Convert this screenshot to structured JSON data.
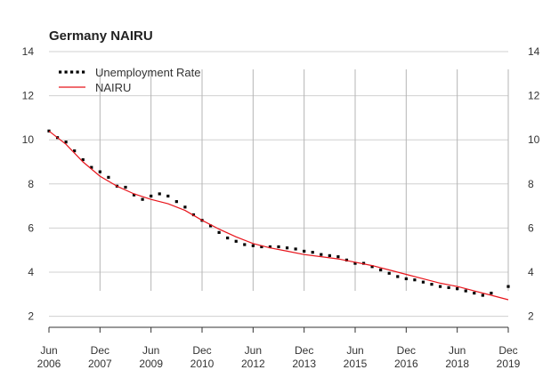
{
  "chart_data": {
    "type": "line",
    "title": "Germany NAIRU",
    "xlabel": "",
    "ylabel": "",
    "ylim": [
      1.5,
      14
    ],
    "y_ticks": [
      2,
      4,
      6,
      8,
      10,
      12,
      14
    ],
    "x_range": [
      "2006-06",
      "2019-12"
    ],
    "x_ticks": [
      {
        "date": "2006-06",
        "month": "Jun",
        "year": "2006"
      },
      {
        "date": "2007-12",
        "month": "Dec",
        "year": "2007"
      },
      {
        "date": "2009-06",
        "month": "Jun",
        "year": "2009"
      },
      {
        "date": "2010-12",
        "month": "Dec",
        "year": "2010"
      },
      {
        "date": "2012-06",
        "month": "Jun",
        "year": "2012"
      },
      {
        "date": "2013-12",
        "month": "Dec",
        "year": "2013"
      },
      {
        "date": "2015-06",
        "month": "Jun",
        "year": "2015"
      },
      {
        "date": "2016-12",
        "month": "Dec",
        "year": "2016"
      },
      {
        "date": "2018-06",
        "month": "Jun",
        "year": "2018"
      },
      {
        "date": "2019-12",
        "month": "Dec",
        "year": "2019"
      }
    ],
    "grid": true,
    "legend_position": "top-left",
    "series": [
      {
        "name": "Unemployment Rate",
        "style": "dotted",
        "color": "#000000",
        "points": [
          [
            "2006-06",
            10.4
          ],
          [
            "2006-09",
            10.1
          ],
          [
            "2006-12",
            9.9
          ],
          [
            "2007-03",
            9.5
          ],
          [
            "2007-06",
            9.1
          ],
          [
            "2007-09",
            8.75
          ],
          [
            "2007-12",
            8.55
          ],
          [
            "2008-03",
            8.3
          ],
          [
            "2008-06",
            7.9
          ],
          [
            "2008-09",
            7.85
          ],
          [
            "2008-12",
            7.5
          ],
          [
            "2009-03",
            7.3
          ],
          [
            "2009-06",
            7.45
          ],
          [
            "2009-09",
            7.55
          ],
          [
            "2009-12",
            7.45
          ],
          [
            "2010-03",
            7.2
          ],
          [
            "2010-06",
            6.95
          ],
          [
            "2010-09",
            6.6
          ],
          [
            "2010-12",
            6.35
          ],
          [
            "2011-03",
            6.1
          ],
          [
            "2011-06",
            5.8
          ],
          [
            "2011-09",
            5.55
          ],
          [
            "2011-12",
            5.4
          ],
          [
            "2012-03",
            5.25
          ],
          [
            "2012-06",
            5.2
          ],
          [
            "2012-09",
            5.15
          ],
          [
            "2012-12",
            5.15
          ],
          [
            "2013-03",
            5.15
          ],
          [
            "2013-06",
            5.1
          ],
          [
            "2013-09",
            5.05
          ],
          [
            "2013-12",
            4.95
          ],
          [
            "2014-03",
            4.9
          ],
          [
            "2014-06",
            4.8
          ],
          [
            "2014-09",
            4.75
          ],
          [
            "2014-12",
            4.7
          ],
          [
            "2015-03",
            4.55
          ],
          [
            "2015-06",
            4.4
          ],
          [
            "2015-09",
            4.4
          ],
          [
            "2015-12",
            4.25
          ],
          [
            "2016-03",
            4.1
          ],
          [
            "2016-06",
            3.95
          ],
          [
            "2016-09",
            3.8
          ],
          [
            "2016-12",
            3.7
          ],
          [
            "2017-03",
            3.65
          ],
          [
            "2017-06",
            3.55
          ],
          [
            "2017-09",
            3.45
          ],
          [
            "2017-12",
            3.35
          ],
          [
            "2018-03",
            3.3
          ],
          [
            "2018-06",
            3.25
          ],
          [
            "2018-09",
            3.15
          ],
          [
            "2018-12",
            3.05
          ],
          [
            "2019-03",
            2.95
          ],
          [
            "2019-06",
            3.05
          ],
          [
            "2019-12",
            3.35
          ]
        ]
      },
      {
        "name": "NAIRU",
        "style": "solid",
        "color": "#e8141b",
        "points": [
          [
            "2006-06",
            10.4
          ],
          [
            "2006-12",
            9.8
          ],
          [
            "2007-06",
            9.0
          ],
          [
            "2007-12",
            8.35
          ],
          [
            "2008-06",
            7.9
          ],
          [
            "2008-12",
            7.55
          ],
          [
            "2009-06",
            7.3
          ],
          [
            "2009-12",
            7.1
          ],
          [
            "2010-06",
            6.8
          ],
          [
            "2010-12",
            6.35
          ],
          [
            "2011-06",
            5.95
          ],
          [
            "2011-12",
            5.6
          ],
          [
            "2012-06",
            5.3
          ],
          [
            "2012-12",
            5.1
          ],
          [
            "2013-06",
            4.95
          ],
          [
            "2013-12",
            4.8
          ],
          [
            "2014-06",
            4.7
          ],
          [
            "2014-12",
            4.6
          ],
          [
            "2015-06",
            4.45
          ],
          [
            "2015-12",
            4.3
          ],
          [
            "2016-06",
            4.1
          ],
          [
            "2016-12",
            3.9
          ],
          [
            "2017-06",
            3.7
          ],
          [
            "2017-12",
            3.5
          ],
          [
            "2018-06",
            3.35
          ],
          [
            "2018-12",
            3.15
          ],
          [
            "2019-06",
            2.95
          ],
          [
            "2019-12",
            2.75
          ]
        ]
      }
    ]
  }
}
